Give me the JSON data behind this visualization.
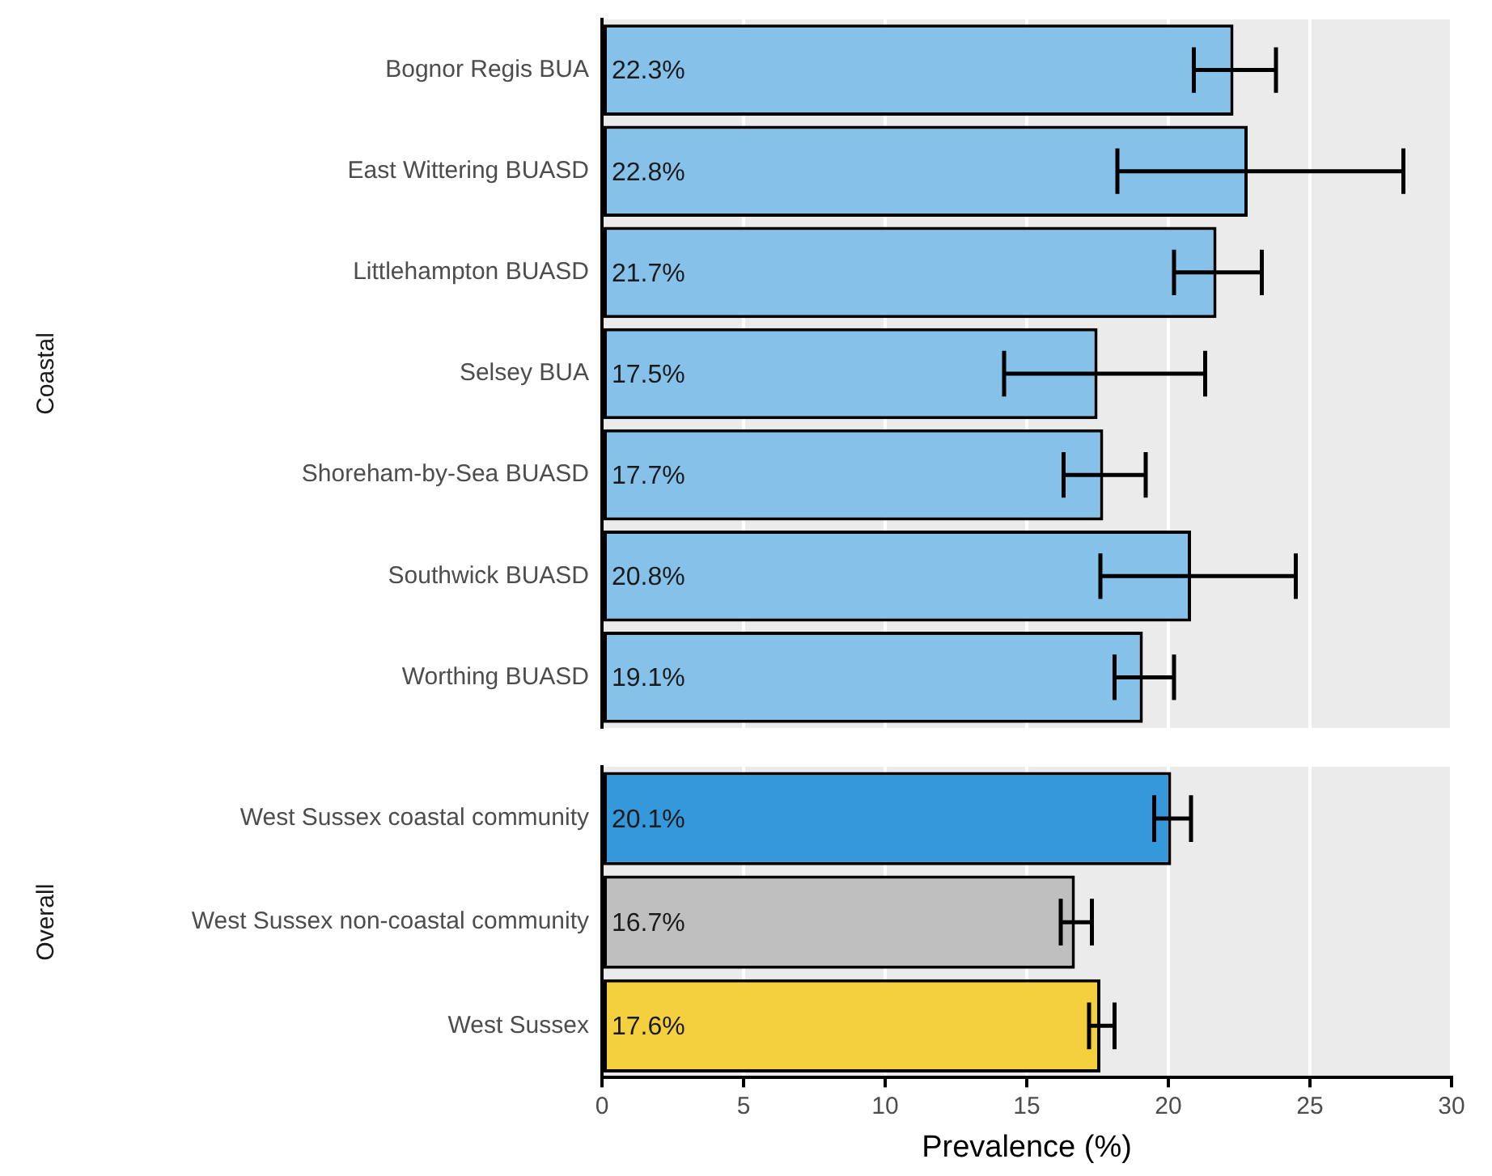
{
  "chart_data": [
    {
      "type": "bar",
      "orientation": "horizontal",
      "ylabel": "Coastal",
      "categories": [
        "Bognor Regis BUA",
        "East Wittering BUASD",
        "Littlehampton BUASD",
        "Selsey BUA",
        "Shoreham-by-Sea BUASD",
        "Southwick BUASD",
        "Worthing BUASD"
      ],
      "values": [
        22.3,
        22.8,
        21.7,
        17.5,
        17.7,
        20.8,
        19.1
      ],
      "colors": [
        "#85c1e9",
        "#85c1e9",
        "#85c1e9",
        "#85c1e9",
        "#85c1e9",
        "#85c1e9",
        "#85c1e9"
      ],
      "errors": [
        [
          20.9,
          23.8
        ],
        [
          18.2,
          28.3
        ],
        [
          20.2,
          23.3
        ],
        [
          14.2,
          21.3
        ],
        [
          16.3,
          19.2
        ],
        [
          17.6,
          24.5
        ],
        [
          18.1,
          20.2
        ]
      ],
      "value_labels": [
        "22.3%",
        "22.8%",
        "21.7%",
        "17.5%",
        "17.7%",
        "20.8%",
        "19.1%"
      ],
      "xlim": [
        0,
        30
      ],
      "xticks": [
        0,
        5,
        10,
        15,
        20,
        25,
        30
      ],
      "grid": "x",
      "tick_labels": "y"
    },
    {
      "type": "bar",
      "orientation": "horizontal",
      "ylabel": "Overall",
      "xlabel": "Prevalence (%)",
      "categories": [
        "West Sussex coastal community",
        "West Sussex non-coastal community",
        "West Sussex"
      ],
      "values": [
        20.1,
        16.7,
        17.6
      ],
      "colors": [
        "#3498db",
        "#bfbfbf",
        "#f4d03f"
      ],
      "errors": [
        [
          19.5,
          20.8
        ],
        [
          16.2,
          17.3
        ],
        [
          17.2,
          18.1
        ]
      ],
      "value_labels": [
        "20.1%",
        "16.7%",
        "17.6%"
      ],
      "xlim": [
        0,
        30
      ],
      "xticks": [
        0,
        5,
        10,
        15,
        20,
        25,
        30
      ],
      "grid": "x"
    }
  ]
}
